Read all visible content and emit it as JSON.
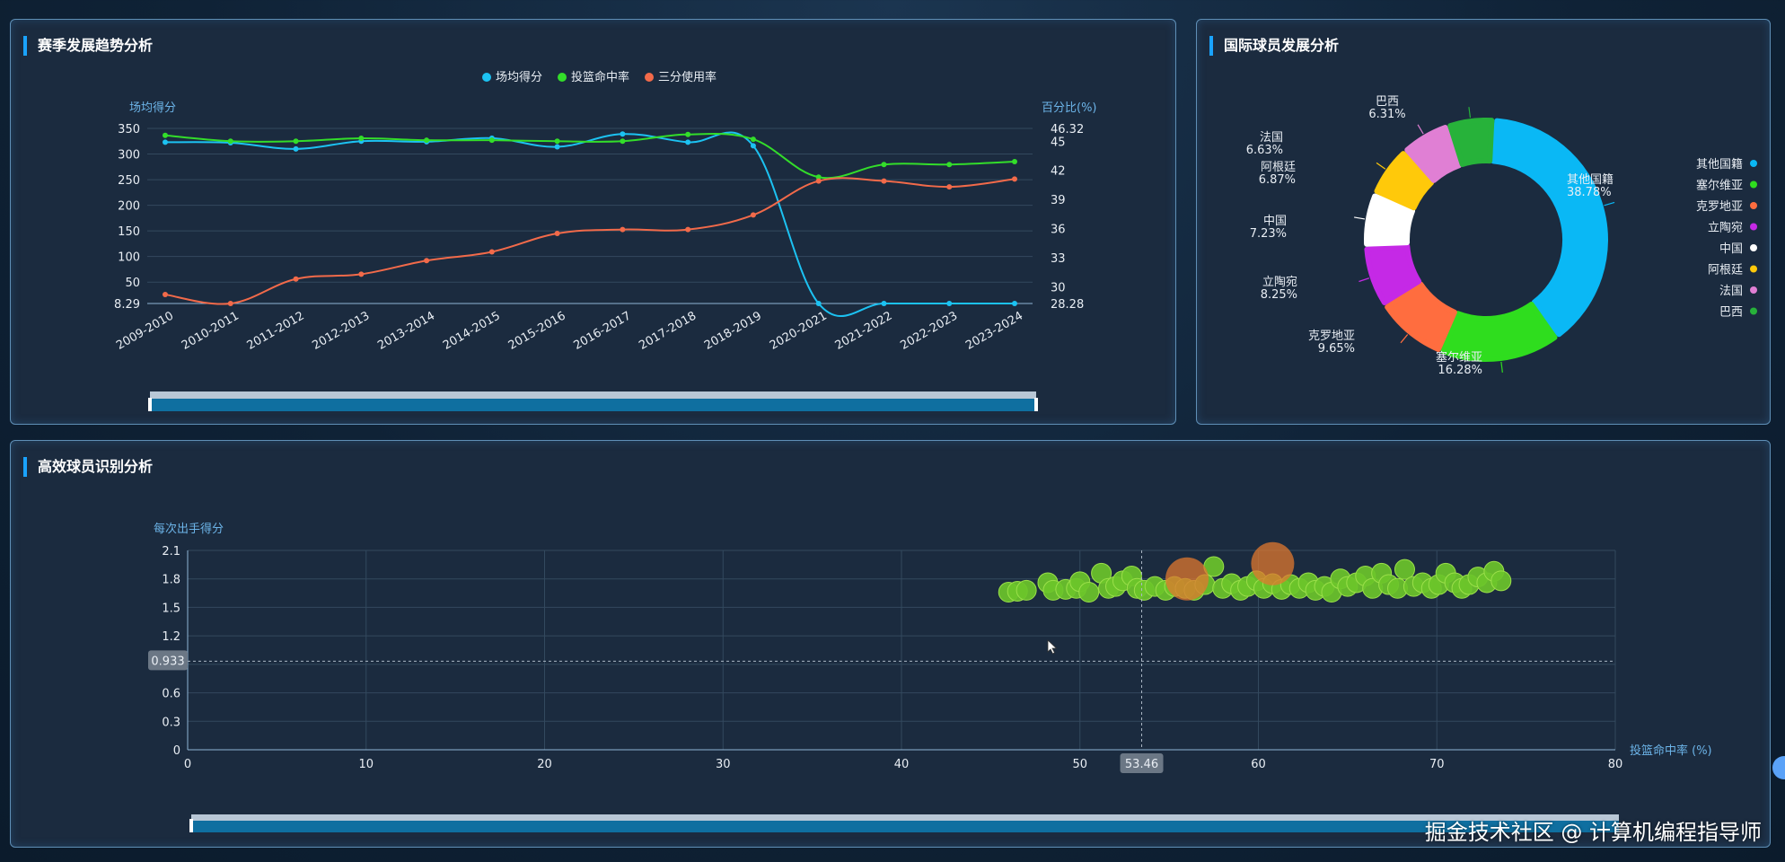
{
  "panels": {
    "trend": {
      "title": "赛季发展趋势分析"
    },
    "intl": {
      "title": "国际球员发展分析"
    },
    "efficiency": {
      "title": "高效球员识别分析"
    }
  },
  "colors": {
    "score": "#1cc2f2",
    "fg": "#33dd2a",
    "three": "#f26a4a",
    "bubble_green": "#6bc42a",
    "bubble_orange": "#e0782f"
  },
  "chart_data": [
    {
      "type": "line",
      "categories": [
        "2009-2010",
        "2010-2011",
        "2011-2012",
        "2012-2013",
        "2013-2014",
        "2014-2015",
        "2015-2016",
        "2016-2017",
        "2017-2018",
        "2018-2019",
        "2020-2021",
        "2021-2022",
        "2022-2023",
        "2023-2024"
      ],
      "series": [
        {
          "name": "场均得分",
          "axis": "left",
          "color": "#1cc2f2",
          "values": [
            323,
            322,
            310,
            325,
            324,
            331,
            314,
            339,
            323,
            316,
            8.29,
            8.29,
            8.29,
            8.29
          ]
        },
        {
          "name": "投篮命中率",
          "axis": "right",
          "color": "#33dd2a",
          "values": [
            45.6,
            45.0,
            45.0,
            45.3,
            45.1,
            45.1,
            45.0,
            45.0,
            45.7,
            45.2,
            41.3,
            42.6,
            42.6,
            42.9
          ]
        },
        {
          "name": "三分使用率",
          "axis": "right",
          "color": "#f26a4a",
          "values": [
            29.2,
            28.28,
            30.8,
            31.3,
            32.7,
            33.6,
            35.5,
            35.9,
            35.9,
            37.4,
            40.9,
            40.9,
            40.3,
            41.1
          ]
        }
      ],
      "ylabel_left": "场均得分",
      "ylabel_right": "百分比(%)",
      "yticks_left": [
        "350",
        "300",
        "250",
        "200",
        "150",
        "100",
        "50",
        "8.29"
      ],
      "yticks_right": [
        "46.32",
        "45",
        "42",
        "39",
        "36",
        "33",
        "30",
        "28.28"
      ],
      "ylim_left": [
        8.29,
        350
      ],
      "ylim_right": [
        28.28,
        46.32
      ],
      "legend": "top-center",
      "grid": true
    },
    {
      "type": "pie",
      "donut": true,
      "slices": [
        {
          "name": "其他国籍",
          "value": 38.78,
          "label": "38.78%",
          "color": "#0ab8f5"
        },
        {
          "name": "塞尔维亚",
          "value": 16.28,
          "label": "16.28%",
          "color": "#2fdd1e"
        },
        {
          "name": "克罗地亚",
          "value": 9.65,
          "label": "9.65%",
          "color": "#ff6d3f"
        },
        {
          "name": "立陶宛",
          "value": 8.25,
          "label": "8.25%",
          "color": "#c529e6"
        },
        {
          "name": "中国",
          "value": 7.23,
          "label": "7.23%",
          "color": "#ffffff"
        },
        {
          "name": "阿根廷",
          "value": 6.87,
          "label": "6.87%",
          "color": "#ffc90a"
        },
        {
          "name": "法国",
          "value": 6.63,
          "label": "6.63%",
          "color": "#e07fd4"
        },
        {
          "name": "巴西",
          "value": 6.31,
          "label": "6.31%",
          "color": "#27b23a"
        }
      ],
      "legend": "right"
    },
    {
      "type": "scatter",
      "xlabel": "投篮命中率 (%)",
      "ylabel": "每次出手得分",
      "xlim": [
        0,
        80
      ],
      "ylim": [
        0,
        2.1
      ],
      "xticks": [
        "0",
        "10",
        "20",
        "30",
        "40",
        "50",
        "60",
        "70",
        "80"
      ],
      "yticks": [
        "0",
        "0.3",
        "0.6",
        "0.9",
        "1.2",
        "1.5",
        "1.8",
        "2.1"
      ],
      "crosshair": {
        "x_label": "53.46",
        "y_label": "0.933",
        "x": 53.46,
        "y": 0.933
      },
      "points": [
        [
          46.0,
          1.66
        ],
        [
          46.5,
          1.67
        ],
        [
          47.0,
          1.68
        ],
        [
          48.2,
          1.76
        ],
        [
          48.5,
          1.68
        ],
        [
          49.2,
          1.69
        ],
        [
          49.8,
          1.7
        ],
        [
          50.0,
          1.77
        ],
        [
          50.5,
          1.66
        ],
        [
          51.2,
          1.86
        ],
        [
          51.6,
          1.7
        ],
        [
          52.0,
          1.72
        ],
        [
          52.4,
          1.78
        ],
        [
          52.9,
          1.83
        ],
        [
          53.2,
          1.7
        ],
        [
          53.6,
          1.68
        ],
        [
          54.2,
          1.72
        ],
        [
          54.8,
          1.68
        ],
        [
          55.3,
          1.72
        ],
        [
          55.9,
          1.7
        ],
        [
          56.4,
          1.68
        ],
        [
          57.0,
          1.74
        ],
        [
          57.5,
          1.93
        ],
        [
          58.0,
          1.7
        ],
        [
          58.5,
          1.75
        ],
        [
          59.0,
          1.68
        ],
        [
          59.4,
          1.72
        ],
        [
          59.9,
          1.78
        ],
        [
          60.3,
          1.7
        ],
        [
          60.8,
          1.75
        ],
        [
          61.3,
          1.69
        ],
        [
          61.8,
          1.74
        ],
        [
          62.3,
          1.7
        ],
        [
          62.8,
          1.76
        ],
        [
          63.2,
          1.68
        ],
        [
          63.7,
          1.72
        ],
        [
          64.1,
          1.66
        ],
        [
          64.6,
          1.8
        ],
        [
          65.0,
          1.72
        ],
        [
          65.5,
          1.76
        ],
        [
          66.0,
          1.83
        ],
        [
          66.4,
          1.7
        ],
        [
          66.9,
          1.86
        ],
        [
          67.3,
          1.74
        ],
        [
          67.8,
          1.7
        ],
        [
          68.2,
          1.9
        ],
        [
          68.7,
          1.72
        ],
        [
          69.2,
          1.76
        ],
        [
          69.7,
          1.7
        ],
        [
          70.1,
          1.74
        ],
        [
          70.5,
          1.86
        ],
        [
          71.0,
          1.76
        ],
        [
          71.4,
          1.7
        ],
        [
          71.8,
          1.74
        ],
        [
          72.3,
          1.82
        ],
        [
          72.8,
          1.76
        ],
        [
          73.2,
          1.88
        ],
        [
          73.6,
          1.78
        ]
      ],
      "highlight_points": [
        [
          60.8,
          1.96
        ],
        [
          56.0,
          1.8
        ]
      ]
    }
  ],
  "watermark": "掘金技术社区 @ 计算机编程指导师"
}
